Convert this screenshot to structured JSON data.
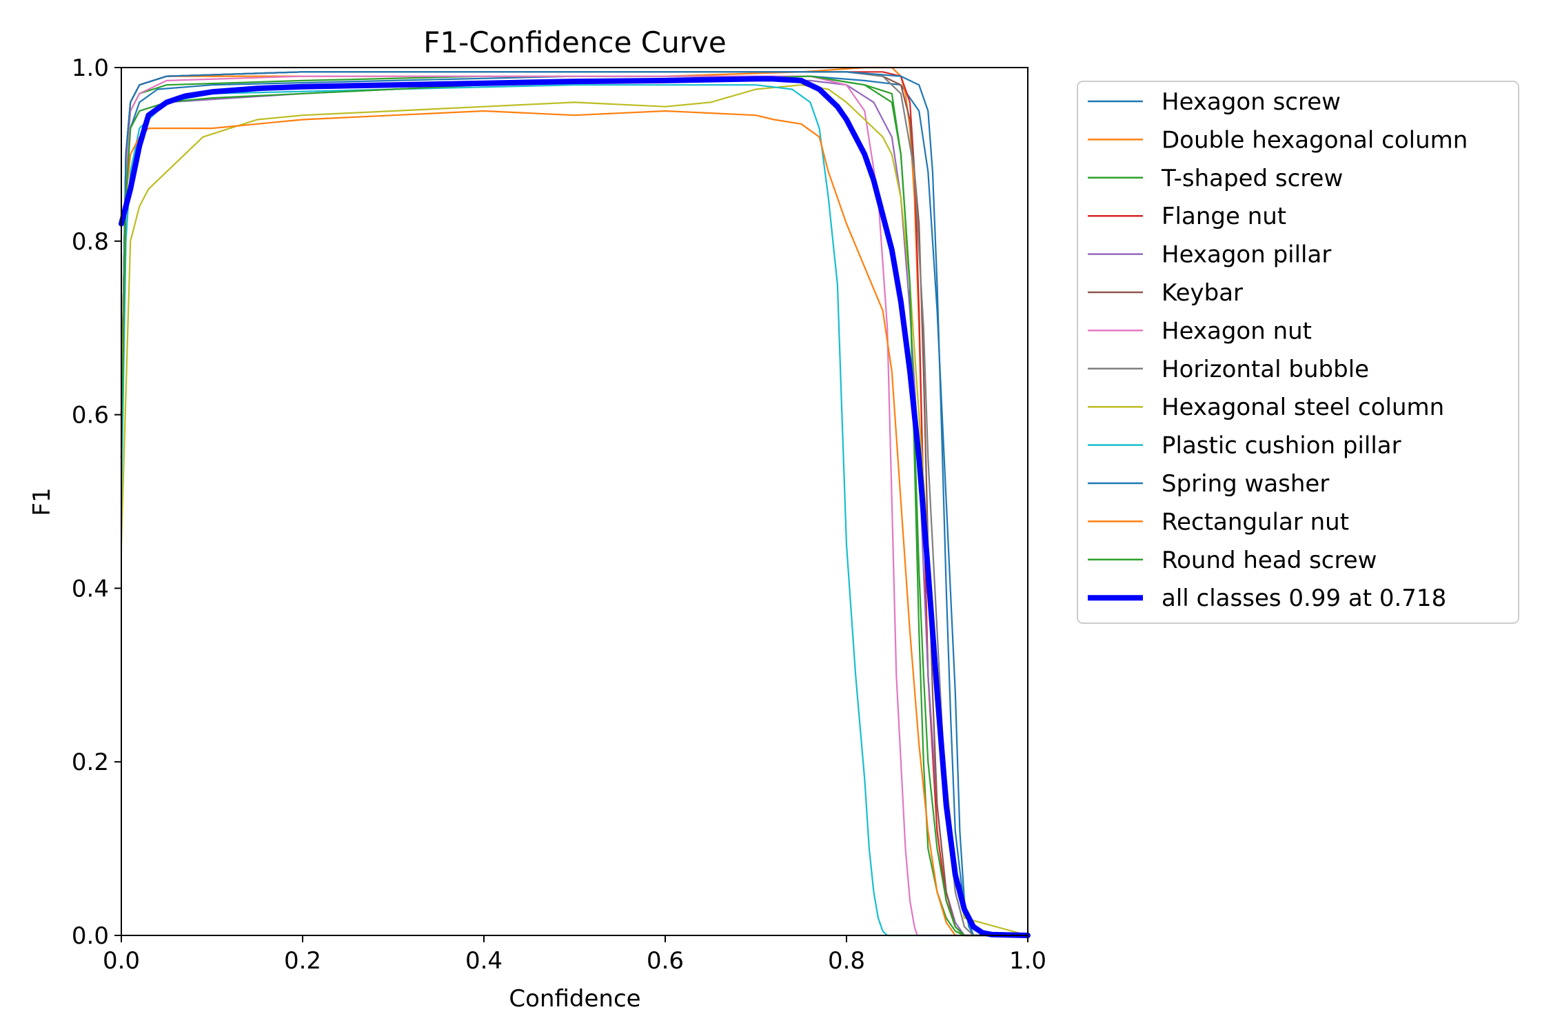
{
  "chart_data": {
    "type": "line",
    "title": "F1-Confidence Curve",
    "xlabel": "Confidence",
    "ylabel": "F1",
    "xlim": [
      0,
      1
    ],
    "ylim": [
      0,
      1
    ],
    "xticks": [
      0.0,
      0.2,
      0.4,
      0.6,
      0.8,
      1.0
    ],
    "yticks": [
      0.0,
      0.2,
      0.4,
      0.6,
      0.8,
      1.0
    ],
    "xtick_labels": [
      "0.0",
      "0.2",
      "0.4",
      "0.6",
      "0.8",
      "1.0"
    ],
    "ytick_labels": [
      "0.0",
      "0.2",
      "0.4",
      "0.6",
      "0.8",
      "1.0"
    ],
    "grid": false,
    "legend_position": "outside-right",
    "series": [
      {
        "name": "Hexagon screw",
        "color": "#1f77b4",
        "linewidth": "thin",
        "x": [
          0,
          0.005,
          0.01,
          0.02,
          0.04,
          0.1,
          0.3,
          0.5,
          0.7,
          0.76,
          0.82,
          0.86,
          0.88,
          0.89,
          0.9,
          0.91,
          0.92,
          0.925,
          0.93,
          0.935,
          0.94,
          1.0
        ],
        "y": [
          0.55,
          0.85,
          0.93,
          0.96,
          0.975,
          0.98,
          0.985,
          0.99,
          0.99,
          0.99,
          0.985,
          0.98,
          0.95,
          0.88,
          0.72,
          0.5,
          0.28,
          0.12,
          0.04,
          0.01,
          0,
          0
        ]
      },
      {
        "name": "Double hexagonal column",
        "color": "#ff7f0e",
        "linewidth": "thin",
        "x": [
          0,
          0.005,
          0.01,
          0.02,
          0.05,
          0.2,
          0.4,
          0.6,
          0.75,
          0.82,
          0.85,
          0.86,
          0.865,
          0.87,
          0.875,
          0.88,
          0.885,
          0.89,
          0.9,
          0.91,
          0.92,
          0.93,
          1.0
        ],
        "y": [
          0.6,
          0.9,
          0.96,
          0.98,
          0.99,
          0.99,
          0.99,
          0.99,
          0.995,
          1.0,
          1.0,
          0.99,
          0.97,
          0.93,
          0.85,
          0.7,
          0.5,
          0.3,
          0.12,
          0.04,
          0.01,
          0,
          0
        ]
      },
      {
        "name": "T-shaped screw",
        "color": "#2ca02c",
        "linewidth": "thin",
        "x": [
          0,
          0.005,
          0.01,
          0.02,
          0.05,
          0.2,
          0.4,
          0.6,
          0.76,
          0.82,
          0.85,
          0.86,
          0.87,
          0.875,
          0.88,
          0.885,
          0.89,
          0.9,
          0.91,
          0.92,
          0.93,
          1.0
        ],
        "y": [
          0.55,
          0.88,
          0.95,
          0.97,
          0.98,
          0.985,
          0.99,
          0.99,
          0.99,
          0.98,
          0.97,
          0.9,
          0.75,
          0.55,
          0.35,
          0.2,
          0.1,
          0.05,
          0.02,
          0.005,
          0,
          0
        ]
      },
      {
        "name": "Flange nut",
        "color": "#d62728",
        "linewidth": "thin",
        "x": [
          0,
          0.005,
          0.01,
          0.02,
          0.05,
          0.2,
          0.4,
          0.6,
          0.8,
          0.84,
          0.86,
          0.87,
          0.875,
          0.88,
          0.885,
          0.89,
          0.9,
          0.91,
          0.92,
          0.93,
          1.0
        ],
        "y": [
          0.6,
          0.9,
          0.96,
          0.98,
          0.99,
          0.995,
          0.995,
          0.995,
          0.995,
          0.995,
          0.99,
          0.96,
          0.88,
          0.72,
          0.5,
          0.3,
          0.12,
          0.04,
          0.01,
          0,
          0
        ]
      },
      {
        "name": "Hexagon pillar",
        "color": "#9467bd",
        "linewidth": "thin",
        "x": [
          0,
          0.005,
          0.01,
          0.02,
          0.05,
          0.2,
          0.4,
          0.6,
          0.76,
          0.8,
          0.83,
          0.85,
          0.86,
          0.87,
          0.88,
          0.885,
          0.89,
          0.9,
          0.91,
          0.92,
          0.93,
          1.0
        ],
        "y": [
          0.55,
          0.85,
          0.93,
          0.95,
          0.96,
          0.97,
          0.98,
          0.985,
          0.985,
          0.98,
          0.96,
          0.92,
          0.85,
          0.72,
          0.55,
          0.42,
          0.3,
          0.15,
          0.05,
          0.015,
          0,
          0
        ]
      },
      {
        "name": "Keybar",
        "color": "#8c564b",
        "linewidth": "thin",
        "x": [
          0,
          0.005,
          0.01,
          0.02,
          0.05,
          0.2,
          0.4,
          0.6,
          0.8,
          0.84,
          0.86,
          0.87,
          0.88,
          0.885,
          0.89,
          0.895,
          0.9,
          0.91,
          0.92,
          0.93,
          1.0
        ],
        "y": [
          0.6,
          0.9,
          0.96,
          0.98,
          0.99,
          0.995,
          0.995,
          0.995,
          0.995,
          0.99,
          0.98,
          0.94,
          0.82,
          0.65,
          0.45,
          0.28,
          0.15,
          0.05,
          0.01,
          0,
          0
        ]
      },
      {
        "name": "Hexagon nut",
        "color": "#e377c2",
        "linewidth": "thin",
        "x": [
          0,
          0.005,
          0.01,
          0.02,
          0.05,
          0.2,
          0.4,
          0.6,
          0.76,
          0.8,
          0.82,
          0.835,
          0.845,
          0.85,
          0.855,
          0.86,
          0.865,
          0.87,
          0.875,
          0.878,
          1.0
        ],
        "y": [
          0.55,
          0.88,
          0.95,
          0.97,
          0.985,
          0.99,
          0.99,
          0.99,
          0.99,
          0.98,
          0.95,
          0.85,
          0.7,
          0.5,
          0.3,
          0.2,
          0.1,
          0.04,
          0.01,
          0,
          0
        ]
      },
      {
        "name": "Horizontal bubble",
        "color": "#7f7f7f",
        "linewidth": "thin",
        "x": [
          0,
          0.005,
          0.01,
          0.02,
          0.05,
          0.2,
          0.4,
          0.6,
          0.8,
          0.84,
          0.86,
          0.875,
          0.885,
          0.89,
          0.9,
          0.91,
          0.92,
          0.93,
          0.94,
          1.0
        ],
        "y": [
          0.6,
          0.9,
          0.96,
          0.98,
          0.99,
          0.995,
          0.995,
          0.995,
          0.995,
          0.99,
          0.97,
          0.88,
          0.7,
          0.55,
          0.35,
          0.15,
          0.05,
          0.01,
          0,
          0
        ]
      },
      {
        "name": "Hexagonal steel column",
        "color": "#bcbd22",
        "linewidth": "thin",
        "x": [
          0,
          0.01,
          0.02,
          0.03,
          0.05,
          0.07,
          0.09,
          0.12,
          0.15,
          0.2,
          0.3,
          0.4,
          0.5,
          0.6,
          0.65,
          0.7,
          0.75,
          0.78,
          0.8,
          0.82,
          0.84,
          0.85,
          0.86,
          0.87,
          0.88,
          0.89,
          0.9,
          0.91,
          0.92,
          0.93,
          1.0
        ],
        "y": [
          0.45,
          0.8,
          0.84,
          0.86,
          0.88,
          0.9,
          0.92,
          0.93,
          0.94,
          0.945,
          0.95,
          0.955,
          0.96,
          0.955,
          0.96,
          0.975,
          0.98,
          0.975,
          0.96,
          0.94,
          0.92,
          0.9,
          0.85,
          0.75,
          0.6,
          0.45,
          0.3,
          0.18,
          0.08,
          0.02,
          0
        ]
      },
      {
        "name": "Plastic cushion pillar",
        "color": "#17becf",
        "linewidth": "thin",
        "x": [
          0,
          0.005,
          0.01,
          0.02,
          0.05,
          0.1,
          0.3,
          0.5,
          0.7,
          0.74,
          0.76,
          0.77,
          0.78,
          0.79,
          0.795,
          0.8,
          0.81,
          0.82,
          0.825,
          0.83,
          0.835,
          0.84,
          0.845,
          1.0
        ],
        "y": [
          0.5,
          0.8,
          0.88,
          0.93,
          0.96,
          0.97,
          0.975,
          0.98,
          0.98,
          0.975,
          0.96,
          0.93,
          0.85,
          0.75,
          0.6,
          0.45,
          0.3,
          0.18,
          0.1,
          0.05,
          0.02,
          0.005,
          0,
          0
        ]
      },
      {
        "name": "Spring washer",
        "color": "#1f77b4",
        "linewidth": "thin",
        "x": [
          0,
          0.005,
          0.01,
          0.02,
          0.05,
          0.2,
          0.4,
          0.6,
          0.8,
          0.86,
          0.88,
          0.89,
          0.895,
          0.9,
          0.905,
          0.91,
          0.915,
          0.92,
          0.93,
          0.94,
          1.0
        ],
        "y": [
          0.6,
          0.9,
          0.96,
          0.98,
          0.99,
          0.995,
          0.995,
          0.995,
          0.995,
          0.99,
          0.98,
          0.95,
          0.88,
          0.75,
          0.58,
          0.4,
          0.25,
          0.12,
          0.03,
          0,
          0
        ]
      },
      {
        "name": "Rectangular nut",
        "color": "#ff7f0e",
        "linewidth": "thin",
        "x": [
          0,
          0.005,
          0.01,
          0.02,
          0.03,
          0.05,
          0.07,
          0.1,
          0.15,
          0.2,
          0.3,
          0.4,
          0.5,
          0.6,
          0.7,
          0.72,
          0.75,
          0.77,
          0.78,
          0.8,
          0.82,
          0.84,
          0.85,
          0.86,
          0.87,
          0.88,
          0.89,
          0.9,
          0.91,
          0.92,
          1.0
        ],
        "y": [
          0.6,
          0.85,
          0.9,
          0.92,
          0.93,
          0.93,
          0.93,
          0.93,
          0.935,
          0.94,
          0.945,
          0.95,
          0.945,
          0.95,
          0.945,
          0.94,
          0.935,
          0.92,
          0.88,
          0.82,
          0.77,
          0.72,
          0.65,
          0.5,
          0.35,
          0.22,
          0.12,
          0.05,
          0.015,
          0,
          0
        ]
      },
      {
        "name": "Round head screw",
        "color": "#2ca02c",
        "linewidth": "thin",
        "x": [
          0,
          0.005,
          0.01,
          0.02,
          0.05,
          0.1,
          0.2,
          0.4,
          0.6,
          0.76,
          0.82,
          0.85,
          0.86,
          0.87,
          0.875,
          0.88,
          0.885,
          0.89,
          0.9,
          0.91,
          0.92,
          0.93,
          1.0
        ],
        "y": [
          0.55,
          0.85,
          0.93,
          0.95,
          0.96,
          0.965,
          0.97,
          0.98,
          0.985,
          0.99,
          0.98,
          0.96,
          0.9,
          0.75,
          0.58,
          0.42,
          0.3,
          0.2,
          0.1,
          0.04,
          0.01,
          0,
          0
        ]
      },
      {
        "name": "all classes 0.99 at 0.718",
        "color": "#0000ff",
        "linewidth": "thick",
        "x": [
          0,
          0.005,
          0.01,
          0.02,
          0.03,
          0.05,
          0.07,
          0.1,
          0.15,
          0.2,
          0.3,
          0.4,
          0.5,
          0.6,
          0.7,
          0.718,
          0.75,
          0.77,
          0.79,
          0.8,
          0.81,
          0.82,
          0.83,
          0.84,
          0.85,
          0.86,
          0.87,
          0.88,
          0.89,
          0.9,
          0.91,
          0.92,
          0.93,
          0.94,
          0.95,
          0.96,
          1.0
        ],
        "y": [
          0.82,
          0.84,
          0.86,
          0.91,
          0.945,
          0.96,
          0.967,
          0.972,
          0.976,
          0.978,
          0.98,
          0.982,
          0.984,
          0.985,
          0.987,
          0.987,
          0.985,
          0.975,
          0.955,
          0.94,
          0.92,
          0.9,
          0.87,
          0.83,
          0.79,
          0.73,
          0.65,
          0.55,
          0.42,
          0.28,
          0.15,
          0.07,
          0.03,
          0.01,
          0.003,
          0.001,
          0
        ]
      }
    ]
  }
}
